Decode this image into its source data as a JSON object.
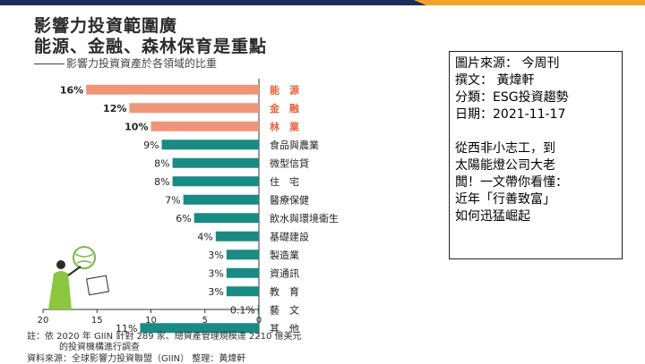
{
  "colors": {
    "navy": "#1f2d5c",
    "accent": "#f2a22a",
    "orange_bar": "#f0957a",
    "teal_bar": "#1a8a84"
  },
  "figure": {
    "title_line1": "影響力投資範圍廣",
    "title_line2": "能源、金融、森林保育是重點",
    "subtitle": "影響力投資資產於各領域的比重",
    "note_line1": "註：依 2020 年 GIIN 針對 289 家、總資產管理規模達 2210 億美元",
    "note_line2": "的投資機構進行調查",
    "source": "資料來源：全球影響力投資聯盟（GIIN） 整理：黃煒軒",
    "illustration": "person-holding-globe"
  },
  "chart_data": {
    "type": "bar",
    "orientation": "horizontal-reversed",
    "categories": [
      "能　源",
      "金　融",
      "林　業",
      "食品與農業",
      "微型信貸",
      "住　宅",
      "醫療保健",
      "飲水與環境衛生",
      "基礎建設",
      "製造業",
      "資通訊",
      "教　育",
      "藝　文",
      "其　他"
    ],
    "values": [
      16,
      12,
      10,
      9,
      8,
      8,
      7,
      6,
      4,
      3,
      3,
      3,
      0.1,
      11
    ],
    "labels": [
      "16%",
      "12%",
      "10%",
      "9%",
      "8%",
      "8%",
      "7%",
      "6%",
      "4%",
      "3%",
      "3%",
      "3%",
      "0.1%",
      "11%"
    ],
    "highlight": [
      true,
      true,
      true,
      false,
      false,
      false,
      false,
      false,
      false,
      false,
      false,
      false,
      false,
      false
    ],
    "xticks": [
      20,
      15,
      10,
      5,
      0
    ],
    "xlim": [
      0,
      20
    ],
    "grid": false,
    "legend": "none"
  },
  "info": {
    "source": "圖片來源： 今周刊",
    "author": "撰文： 黃煒軒",
    "category": "分類：ESG投資趨勢",
    "date": "日期：2021-11-17",
    "summary": [
      "從西非小志工，到",
      "太陽能燈公司大老",
      "闆！一文帶你看懂：",
      "近年「行善致富」",
      "如何迅猛崛起"
    ]
  }
}
